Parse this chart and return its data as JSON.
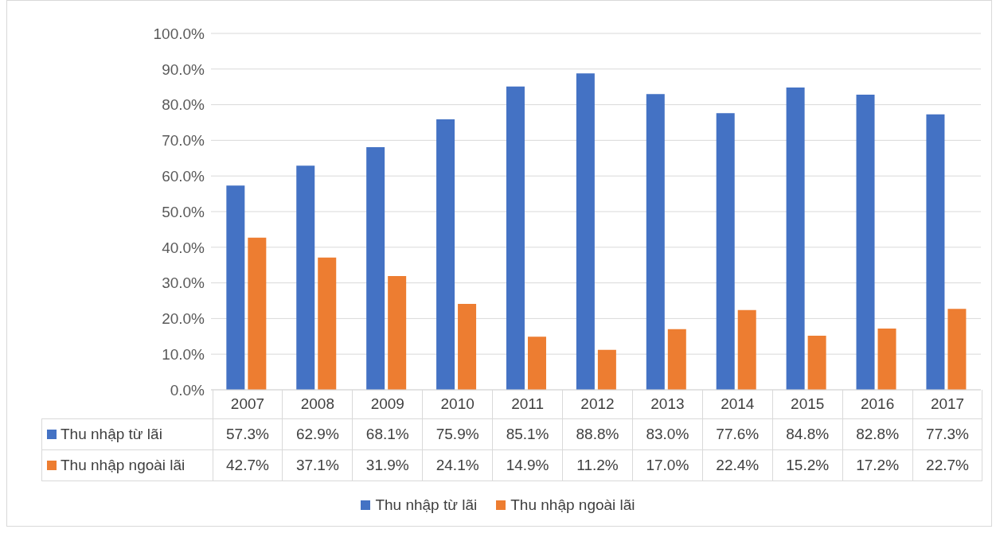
{
  "chart_data": {
    "type": "bar",
    "categories": [
      "2007",
      "2008",
      "2009",
      "2010",
      "2011",
      "2012",
      "2013",
      "2014",
      "2015",
      "2016",
      "2017"
    ],
    "series": [
      {
        "name": "Thu nhập từ lãi",
        "color": "#4472c4",
        "values": [
          57.3,
          62.9,
          68.1,
          75.9,
          85.1,
          88.8,
          83.0,
          77.6,
          84.8,
          82.8,
          77.3
        ],
        "value_labels": [
          "57.3%",
          "62.9%",
          "68.1%",
          "75.9%",
          "85.1%",
          "88.8%",
          "83.0%",
          "77.6%",
          "84.8%",
          "82.8%",
          "77.3%"
        ]
      },
      {
        "name": "Thu nhập ngoài lãi",
        "color": "#ed7d31",
        "values": [
          42.7,
          37.1,
          31.9,
          24.1,
          14.9,
          11.2,
          17.0,
          22.4,
          15.2,
          17.2,
          22.7
        ],
        "value_labels": [
          "42.7%",
          "37.1%",
          "31.9%",
          "24.1%",
          "14.9%",
          "11.2%",
          "17.0%",
          "22.4%",
          "15.2%",
          "17.2%",
          "22.7%"
        ]
      }
    ],
    "ylim": [
      0,
      100
    ],
    "yticks": [
      {
        "value": 0,
        "label": "0.0%"
      },
      {
        "value": 10,
        "label": "10.0%"
      },
      {
        "value": 20,
        "label": "20.0%"
      },
      {
        "value": 30,
        "label": "30.0%"
      },
      {
        "value": 40,
        "label": "40.0%"
      },
      {
        "value": 50,
        "label": "50.0%"
      },
      {
        "value": 60,
        "label": "60.0%"
      },
      {
        "value": 70,
        "label": "70.0%"
      },
      {
        "value": 80,
        "label": "80.0%"
      },
      {
        "value": 90,
        "label": "90.0%"
      },
      {
        "value": 100,
        "label": "100.0%"
      }
    ],
    "grid": "y",
    "legend": "bottom"
  }
}
